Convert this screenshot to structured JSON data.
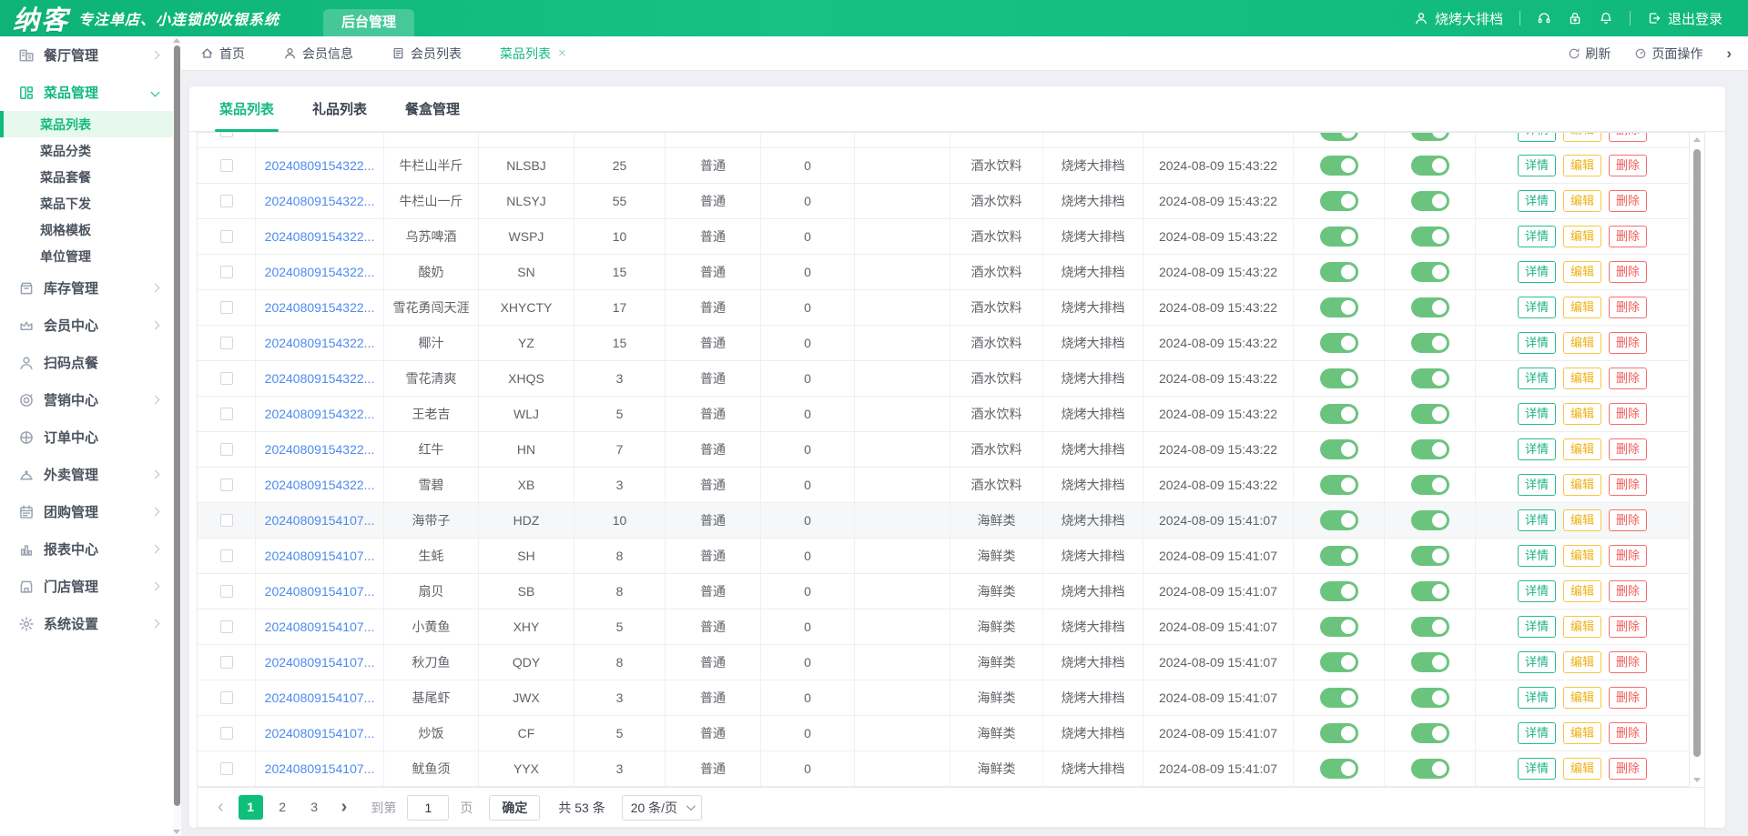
{
  "header": {
    "logo": "纳客",
    "tagline": "专注单店、小连锁的收银系统",
    "nav_tab": "后台管理",
    "user": "烧烤大排档",
    "logout_label": "退出登录",
    "icons": [
      "user-icon",
      "headset-icon",
      "lock-icon",
      "bell-icon",
      "logout-icon"
    ]
  },
  "colors": {
    "primary_green": "#12ba7d",
    "toggle_green": "#6bc47e",
    "link_blue": "#4d8bf0",
    "detail_green": "#1db389",
    "edit_yellow": "#edb113",
    "delete_red": "#f25a5a",
    "pagination_active": "#0fbe79"
  },
  "sidebar": {
    "items": [
      {
        "label": "餐厅管理",
        "icon": "building-icon",
        "chevron": "right"
      },
      {
        "label": "菜品管理",
        "icon": "dishes-icon",
        "chevron": "down",
        "active": true,
        "children": [
          {
            "label": "菜品列表",
            "active": true
          },
          {
            "label": "菜品分类"
          },
          {
            "label": "菜品套餐"
          },
          {
            "label": "菜品下发"
          },
          {
            "label": "规格模板"
          },
          {
            "label": "单位管理"
          }
        ]
      },
      {
        "label": "库存管理",
        "icon": "inventory-icon",
        "chevron": "right"
      },
      {
        "label": "会员中心",
        "icon": "crown-icon",
        "chevron": "right"
      },
      {
        "label": "扫码点餐",
        "icon": "person-icon",
        "chevron": "none"
      },
      {
        "label": "营销中心",
        "icon": "target-icon",
        "chevron": "right"
      },
      {
        "label": "订单中心",
        "icon": "globe-icon",
        "chevron": "none"
      },
      {
        "label": "外卖管理",
        "icon": "cloche-icon",
        "chevron": "right"
      },
      {
        "label": "团购管理",
        "icon": "calendar-icon",
        "chevron": "right"
      },
      {
        "label": "报表中心",
        "icon": "chart-icon",
        "chevron": "right"
      },
      {
        "label": "门店管理",
        "icon": "store-icon",
        "chevron": "right"
      },
      {
        "label": "系统设置",
        "icon": "gear-icon",
        "chevron": "right"
      }
    ]
  },
  "tabbar": {
    "tabs": [
      {
        "label": "首页",
        "icon": "home-icon"
      },
      {
        "label": "会员信息",
        "icon": "user-icon"
      },
      {
        "label": "会员列表",
        "icon": "list-icon"
      },
      {
        "label": "菜品列表",
        "active": true,
        "closable": true
      }
    ],
    "refresh_label": "刷新",
    "page_ops_label": "页面操作"
  },
  "content": {
    "tabs": [
      "菜品列表",
      "礼品列表",
      "餐盒管理"
    ],
    "active_tab": "菜品列表",
    "table": {
      "actions": [
        "详情",
        "编辑",
        "删除"
      ],
      "rows": [
        {
          "id": "20240809154322...",
          "name": "牛栏山半斤",
          "code": "NLSBJ",
          "price": "25",
          "type": "普通",
          "stock": "0",
          "image": "",
          "category": "酒水饮料",
          "store": "烧烤大排档",
          "created": "2024-08-09 15:43:22",
          "switch1": true,
          "switch2": true
        },
        {
          "id": "20240809154322...",
          "name": "牛栏山一斤",
          "code": "NLSYJ",
          "price": "55",
          "type": "普通",
          "stock": "0",
          "image": "",
          "category": "酒水饮料",
          "store": "烧烤大排档",
          "created": "2024-08-09 15:43:22",
          "switch1": true,
          "switch2": true
        },
        {
          "id": "20240809154322...",
          "name": "乌苏啤酒",
          "code": "WSPJ",
          "price": "10",
          "type": "普通",
          "stock": "0",
          "image": "",
          "category": "酒水饮料",
          "store": "烧烤大排档",
          "created": "2024-08-09 15:43:22",
          "switch1": true,
          "switch2": true
        },
        {
          "id": "20240809154322...",
          "name": "酸奶",
          "code": "SN",
          "price": "15",
          "type": "普通",
          "stock": "0",
          "image": "",
          "category": "酒水饮料",
          "store": "烧烤大排档",
          "created": "2024-08-09 15:43:22",
          "switch1": true,
          "switch2": true
        },
        {
          "id": "20240809154322...",
          "name": "雪花勇闯天涯",
          "code": "XHYCTY",
          "price": "17",
          "type": "普通",
          "stock": "0",
          "image": "",
          "category": "酒水饮料",
          "store": "烧烤大排档",
          "created": "2024-08-09 15:43:22",
          "switch1": true,
          "switch2": true
        },
        {
          "id": "20240809154322...",
          "name": "椰汁",
          "code": "YZ",
          "price": "15",
          "type": "普通",
          "stock": "0",
          "image": "",
          "category": "酒水饮料",
          "store": "烧烤大排档",
          "created": "2024-08-09 15:43:22",
          "switch1": true,
          "switch2": true
        },
        {
          "id": "20240809154322...",
          "name": "雪花清爽",
          "code": "XHQS",
          "price": "3",
          "type": "普通",
          "stock": "0",
          "image": "",
          "category": "酒水饮料",
          "store": "烧烤大排档",
          "created": "2024-08-09 15:43:22",
          "switch1": true,
          "switch2": true
        },
        {
          "id": "20240809154322...",
          "name": "王老吉",
          "code": "WLJ",
          "price": "5",
          "type": "普通",
          "stock": "0",
          "image": "",
          "category": "酒水饮料",
          "store": "烧烤大排档",
          "created": "2024-08-09 15:43:22",
          "switch1": true,
          "switch2": true
        },
        {
          "id": "20240809154322...",
          "name": "红牛",
          "code": "HN",
          "price": "7",
          "type": "普通",
          "stock": "0",
          "image": "",
          "category": "酒水饮料",
          "store": "烧烤大排档",
          "created": "2024-08-09 15:43:22",
          "switch1": true,
          "switch2": true
        },
        {
          "id": "20240809154322...",
          "name": "雪碧",
          "code": "XB",
          "price": "3",
          "type": "普通",
          "stock": "0",
          "image": "",
          "category": "酒水饮料",
          "store": "烧烤大排档",
          "created": "2024-08-09 15:43:22",
          "switch1": true,
          "switch2": true
        },
        {
          "id": "20240809154107...",
          "name": "海带子",
          "code": "HDZ",
          "price": "10",
          "type": "普通",
          "stock": "0",
          "image": "",
          "category": "海鲜类",
          "store": "烧烤大排档",
          "created": "2024-08-09 15:41:07",
          "switch1": true,
          "switch2": true,
          "highlighted": true
        },
        {
          "id": "20240809154107...",
          "name": "生蚝",
          "code": "SH",
          "price": "8",
          "type": "普通",
          "stock": "0",
          "image": "",
          "category": "海鲜类",
          "store": "烧烤大排档",
          "created": "2024-08-09 15:41:07",
          "switch1": true,
          "switch2": true
        },
        {
          "id": "20240809154107...",
          "name": "扇贝",
          "code": "SB",
          "price": "8",
          "type": "普通",
          "stock": "0",
          "image": "",
          "category": "海鲜类",
          "store": "烧烤大排档",
          "created": "2024-08-09 15:41:07",
          "switch1": true,
          "switch2": true
        },
        {
          "id": "20240809154107...",
          "name": "小黄鱼",
          "code": "XHY",
          "price": "5",
          "type": "普通",
          "stock": "0",
          "image": "",
          "category": "海鲜类",
          "store": "烧烤大排档",
          "created": "2024-08-09 15:41:07",
          "switch1": true,
          "switch2": true
        },
        {
          "id": "20240809154107...",
          "name": "秋刀鱼",
          "code": "QDY",
          "price": "8",
          "type": "普通",
          "stock": "0",
          "image": "",
          "category": "海鲜类",
          "store": "烧烤大排档",
          "created": "2024-08-09 15:41:07",
          "switch1": true,
          "switch2": true
        },
        {
          "id": "20240809154107...",
          "name": "基尾虾",
          "code": "JWX",
          "price": "3",
          "type": "普通",
          "stock": "0",
          "image": "",
          "category": "海鲜类",
          "store": "烧烤大排档",
          "created": "2024-08-09 15:41:07",
          "switch1": true,
          "switch2": true
        },
        {
          "id": "20240809154107...",
          "name": "炒饭",
          "code": "CF",
          "price": "5",
          "type": "普通",
          "stock": "0",
          "image": "",
          "category": "海鲜类",
          "store": "烧烤大排档",
          "created": "2024-08-09 15:41:07",
          "switch1": true,
          "switch2": true
        },
        {
          "id": "20240809154107...",
          "name": "鱿鱼须",
          "code": "YYX",
          "price": "3",
          "type": "普通",
          "stock": "0",
          "image": "",
          "category": "海鲜类",
          "store": "烧烤大排档",
          "created": "2024-08-09 15:41:07",
          "switch1": true,
          "switch2": true
        }
      ]
    },
    "pagination": {
      "pages": [
        "1",
        "2",
        "3"
      ],
      "current": "1",
      "goto_label": "到第",
      "goto_value": "1",
      "page_unit": "页",
      "confirm_label": "确定",
      "total_label": "共 53 条",
      "page_size_label": "20 条/页"
    }
  }
}
